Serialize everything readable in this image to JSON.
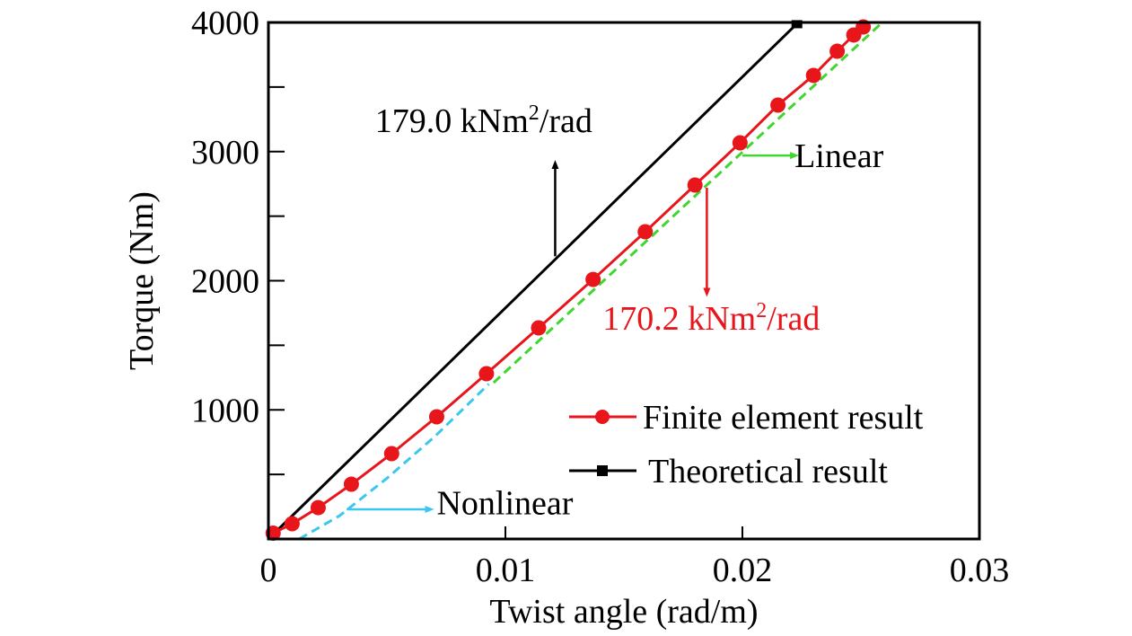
{
  "chart_data": {
    "type": "line",
    "title": "",
    "xlabel": "Twist angle (rad/m)",
    "ylabel": "Torque (Nm)",
    "xlim": [
      0,
      0.03
    ],
    "ylim": [
      0,
      4000
    ],
    "x_ticks": [
      0,
      0.01,
      0.02,
      0.03
    ],
    "x_tick_labels": [
      "0",
      "0.01",
      "0.02",
      "0.03"
    ],
    "x_minor_ticks": [],
    "y_ticks": [
      1000,
      2000,
      3000,
      4000
    ],
    "y_tick_labels": [
      "1000",
      "2000",
      "3000",
      "4000"
    ],
    "y_minor_ticks": [
      500,
      1500,
      2500,
      3500
    ],
    "grid": false,
    "legend_position": "lower-right",
    "series": [
      {
        "name": "Finite element result",
        "color": "#e8151b",
        "marker": "circle",
        "line_style": "solid",
        "x": [
          0.0002,
          0.001,
          0.0021,
          0.0035,
          0.0052,
          0.0071,
          0.0092,
          0.0114,
          0.0137,
          0.0159,
          0.018,
          0.0199,
          0.0215,
          0.023,
          0.024,
          0.0247,
          0.0251
        ],
        "y": [
          45,
          118,
          243,
          424,
          661,
          946,
          1280,
          1635,
          2010,
          2379,
          2741,
          3068,
          3360,
          3590,
          3777,
          3903,
          3965
        ]
      },
      {
        "name": "Theoretical result",
        "color": "#000000",
        "marker": "square",
        "line_style": "solid",
        "x": [
          0,
          0.0223
        ],
        "y": [
          0,
          3990
        ]
      },
      {
        "name": "Nonlinear",
        "color": "#3cc8ec",
        "marker": "none",
        "line_style": "dashed",
        "x": [
          0.0013,
          0.003,
          0.005,
          0.007,
          0.0093
        ],
        "y": [
          0,
          180,
          470,
          790,
          1200
        ]
      },
      {
        "name": "Linear",
        "color": "#3ed62f",
        "marker": "none",
        "line_style": "dashed",
        "x": [
          0.0095,
          0.0259
        ],
        "y": [
          1210,
          4000
        ]
      }
    ],
    "legend": [
      {
        "label": "Finite element result",
        "color": "#e8151b",
        "marker": "circle"
      },
      {
        "label": "Theoretical result",
        "color": "#000000",
        "marker": "square"
      }
    ],
    "annotations": [
      {
        "id": "theory-slope",
        "text_main": "179.0 kNm",
        "sup": "2",
        "text_tail": "/rad",
        "color": "#000000",
        "at": [
          0.0045,
          3150
        ],
        "arrow_from": [
          0.0121,
          2190
        ],
        "arrow_to": [
          0.0121,
          2900
        ]
      },
      {
        "id": "fe-slope",
        "text_main": "170.2 kNm",
        "sup": "2",
        "text_tail": "/rad",
        "color": "#e8151b",
        "at": [
          0.0141,
          1620
        ],
        "arrow_from": [
          0.0185,
          2720
        ],
        "arrow_to": [
          0.0185,
          1910
        ]
      },
      {
        "id": "linear-label",
        "text": "Linear",
        "color": "#000000",
        "at": [
          0.0222,
          2880
        ],
        "arrow_color": "#3ed62f",
        "arrow_from": [
          0.02,
          2970
        ],
        "arrow_to": [
          0.0222,
          2970
        ]
      },
      {
        "id": "nonlinear-label",
        "text": "Nonlinear",
        "color": "#000000",
        "at": [
          0.0071,
          190
        ],
        "arrow_color": "#3cc8ec",
        "arrow_from": [
          0.0033,
          230
        ],
        "arrow_to": [
          0.0068,
          230
        ]
      }
    ]
  }
}
